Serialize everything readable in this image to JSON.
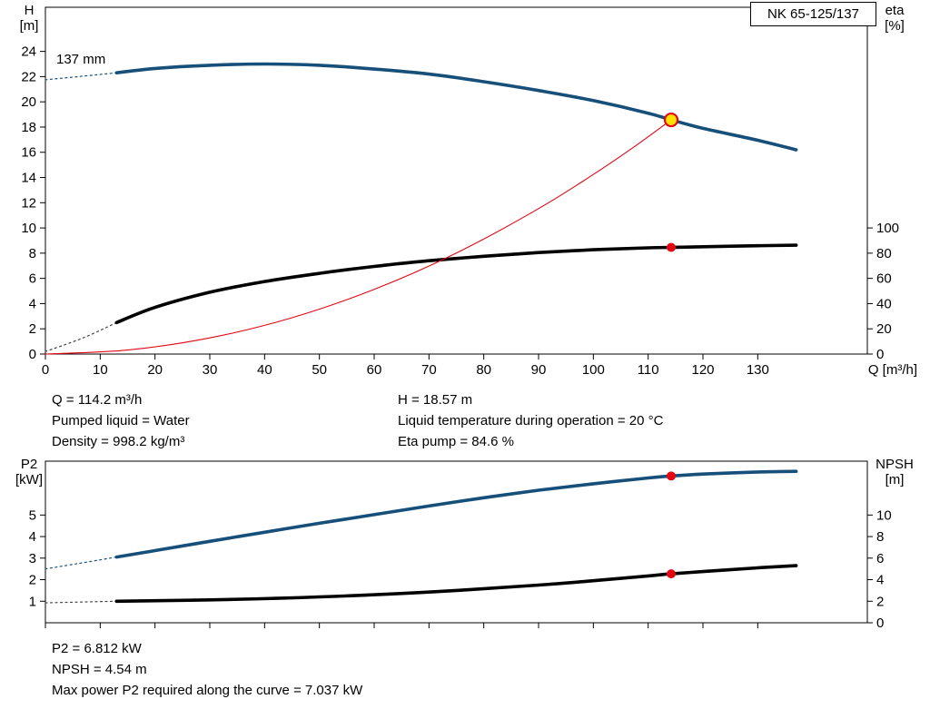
{
  "header": {
    "pump_model": "NK 65-125/137",
    "impeller_label": "137 mm"
  },
  "info_top": {
    "left": [
      "Q = 114.2 m³/h",
      "Pumped liquid = Water",
      "Density = 998.2 kg/m³"
    ],
    "right": [
      "H = 18.57 m",
      "Liquid temperature during operation = 20 °C",
      "Eta pump = 84.6 %"
    ]
  },
  "info_bottom": [
    "P2 = 6.812 kW",
    "NPSH = 4.54 m",
    "Max power P2 required along the curve = 7.037 kW"
  ],
  "colors": {
    "curve_blue": "#174f7b",
    "curve_black": "#000000",
    "curve_red": "#e30613",
    "marker_yellow": "#ffe000"
  },
  "chart_data": [
    {
      "type": "line",
      "title": "NK 65-125/137",
      "x_label": "Q [m³/h]",
      "x_range": [
        0,
        150
      ],
      "x_ticks": [
        0,
        10,
        20,
        30,
        40,
        50,
        60,
        70,
        80,
        90,
        100,
        110,
        120,
        130
      ],
      "x_tick_labels": true,
      "y_left": {
        "label": [
          "H",
          "[m]"
        ],
        "range": [
          0,
          27.5
        ],
        "ticks": [
          0,
          2,
          4,
          6,
          8,
          10,
          12,
          14,
          16,
          18,
          20,
          22,
          24
        ]
      },
      "y_right": {
        "label": [
          "eta",
          "[%]"
        ],
        "range": [
          0,
          275
        ],
        "ticks": [
          0,
          20,
          40,
          60,
          80,
          100
        ]
      },
      "grid": false,
      "series": [
        {
          "name": "head-curve-dashed-leadin",
          "axis": "left",
          "color": "#174f7b",
          "width": 1.2,
          "dash": "2 3.5",
          "x": [
            0,
            6,
            13
          ],
          "y": [
            21.75,
            22.0,
            22.3
          ]
        },
        {
          "name": "head-curve",
          "axis": "left",
          "color": "#174f7b",
          "width": 3.6,
          "x": [
            13,
            20,
            30,
            40,
            50,
            60,
            70,
            80,
            90,
            100,
            110,
            114.2,
            120,
            130,
            137
          ],
          "y": [
            22.3,
            22.65,
            22.9,
            23.0,
            22.9,
            22.6,
            22.2,
            21.6,
            20.9,
            20.1,
            19.1,
            18.57,
            17.9,
            16.95,
            16.2
          ]
        },
        {
          "name": "eta-curve-dashed-leadin",
          "axis": "right",
          "color": "#444444",
          "width": 1.2,
          "dash": "2 3.5",
          "x": [
            0,
            7,
            13
          ],
          "y": [
            2,
            13,
            25
          ]
        },
        {
          "name": "eta-curve",
          "axis": "right",
          "color": "#000000",
          "width": 3.6,
          "x": [
            13,
            20,
            30,
            40,
            50,
            60,
            70,
            80,
            90,
            100,
            110,
            114.2,
            120,
            130,
            137
          ],
          "y": [
            25,
            37,
            49,
            57.5,
            64,
            69.5,
            74,
            77.5,
            80.5,
            82.7,
            84.2,
            84.6,
            85.1,
            85.9,
            86.3
          ]
        },
        {
          "name": "system-curve",
          "axis": "left",
          "color": "#e30613",
          "width": 1.1,
          "x": [
            0,
            15,
            30,
            45,
            60,
            75,
            90,
            100,
            107,
            114.2
          ],
          "y": [
            0,
            0.32,
            1.28,
            2.88,
            5.13,
            8.01,
            11.53,
            14.24,
            16.3,
            18.57
          ]
        }
      ],
      "markers": [
        {
          "name": "duty-point",
          "axis": "left",
          "x": 114.2,
          "y": 18.57,
          "r": 7,
          "fill": "#ffe000",
          "stroke": "#e30613",
          "stroke_width": 2.2
        },
        {
          "name": "eta-operating-point",
          "axis": "right",
          "x": 114.2,
          "y": 84.6,
          "r": 5,
          "fill": "#e30613"
        }
      ]
    },
    {
      "type": "line",
      "title": "",
      "x_label": "",
      "x_range": [
        0,
        150
      ],
      "x_ticks": [
        0,
        10,
        20,
        30,
        40,
        50,
        60,
        70,
        80,
        90,
        100,
        110,
        120,
        130
      ],
      "x_tick_labels": false,
      "y_left": {
        "label": [
          "P2",
          "[kW]"
        ],
        "range": [
          0,
          7.5
        ],
        "ticks": [
          1,
          2,
          3,
          4,
          5
        ]
      },
      "y_right": {
        "label": [
          "NPSH",
          "[m]"
        ],
        "range": [
          0,
          15
        ],
        "ticks": [
          0,
          2,
          4,
          6,
          8,
          10
        ]
      },
      "grid": false,
      "series": [
        {
          "name": "p2-curve-dashed-leadin",
          "axis": "left",
          "color": "#174f7b",
          "width": 1.2,
          "dash": "2 3.5",
          "x": [
            0,
            6,
            13
          ],
          "y": [
            2.5,
            2.75,
            3.05
          ]
        },
        {
          "name": "p2-curve",
          "axis": "left",
          "color": "#174f7b",
          "width": 3.6,
          "x": [
            13,
            20,
            30,
            40,
            50,
            60,
            70,
            80,
            90,
            100,
            110,
            114.2,
            120,
            130,
            137
          ],
          "y": [
            3.05,
            3.35,
            3.78,
            4.2,
            4.62,
            5.02,
            5.42,
            5.8,
            6.15,
            6.45,
            6.72,
            6.812,
            6.9,
            7.0,
            7.03
          ]
        },
        {
          "name": "npsh-curve-dashed-leadin",
          "axis": "right",
          "color": "#444444",
          "width": 1.2,
          "dash": "2 3.5",
          "x": [
            0,
            13
          ],
          "y": [
            1.85,
            2.0
          ]
        },
        {
          "name": "npsh-curve",
          "axis": "right",
          "color": "#000000",
          "width": 3.6,
          "x": [
            13,
            30,
            50,
            70,
            90,
            100,
            110,
            114.2,
            120,
            130,
            137
          ],
          "y": [
            2.0,
            2.12,
            2.4,
            2.85,
            3.5,
            3.9,
            4.35,
            4.54,
            4.75,
            5.1,
            5.3
          ]
        }
      ],
      "markers": [
        {
          "name": "p2-operating-point",
          "axis": "left",
          "x": 114.2,
          "y": 6.812,
          "r": 5,
          "fill": "#e30613"
        },
        {
          "name": "npsh-operating-point",
          "axis": "right",
          "x": 114.2,
          "y": 4.54,
          "r": 5,
          "fill": "#e30613"
        }
      ]
    }
  ]
}
